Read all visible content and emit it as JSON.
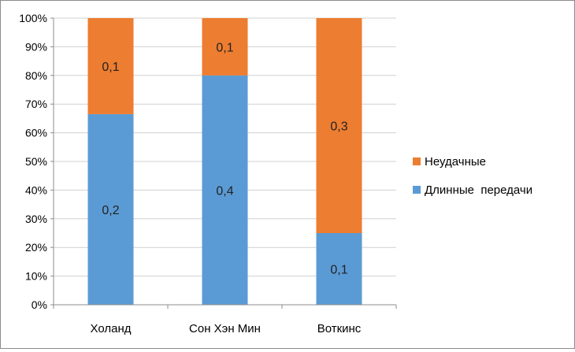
{
  "chart_data": {
    "type": "bar",
    "stacked": "percent",
    "categories": [
      "Холанд",
      "Сон Хэн Мин",
      "Воткинс"
    ],
    "series": [
      {
        "name": "Длинные  передачи",
        "color": "#5b9bd5",
        "values": [
          0.2,
          0.4,
          0.1
        ],
        "labels": [
          "0,2",
          "0,4",
          "0,1"
        ],
        "share_pct": [
          66.5,
          80,
          25
        ]
      },
      {
        "name": "Неудачные",
        "color": "#ed7d31",
        "values": [
          0.1,
          0.1,
          0.3
        ],
        "labels": [
          "0,1",
          "0,1",
          "0,3"
        ],
        "share_pct": [
          33.5,
          20,
          75
        ]
      }
    ],
    "yaxis": {
      "min": 0,
      "max": 100,
      "step": 10,
      "tick_labels": [
        "0%",
        "10%",
        "20%",
        "30%",
        "40%",
        "50%",
        "60%",
        "70%",
        "80%",
        "90%",
        "100%"
      ]
    },
    "grid": "horizontal",
    "legend": {
      "position": "right",
      "order": [
        "Неудачные",
        "Длинные  передачи"
      ]
    },
    "title": "",
    "xlabel": "",
    "ylabel": ""
  }
}
